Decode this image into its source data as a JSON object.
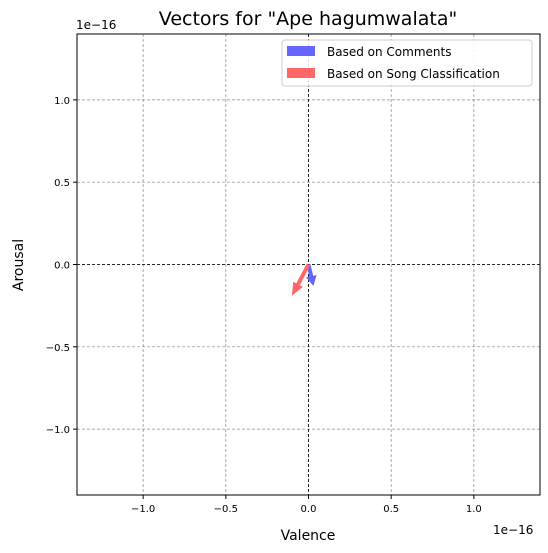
{
  "chart_data": {
    "type": "quiver",
    "title": "Vectors for \"Ape hagumwalata\"",
    "xlabel": "Valence",
    "ylabel": "Arousal",
    "x_offset_label": "1e−16",
    "y_offset_label": "1e−16",
    "scale": 1e-16,
    "xlim": [
      -1.4,
      1.4
    ],
    "ylim": [
      -1.4,
      1.4
    ],
    "xticks": [
      -1.0,
      -0.5,
      0.0,
      0.5,
      1.0
    ],
    "xtick_labels": [
      "−1.0",
      "−0.5",
      "0.0",
      "0.5",
      "1.0"
    ],
    "yticks": [
      -1.0,
      -0.5,
      0.0,
      0.5,
      1.0
    ],
    "ytick_labels": [
      "−1.0",
      "−0.5",
      "0.0",
      "0.5",
      "1.0"
    ],
    "grid": true,
    "legend_position": "top-right",
    "series": [
      {
        "name": "Based on Comments",
        "color": "#6666ff",
        "origin": [
          0,
          0
        ],
        "vector": [
          0.03,
          -0.13
        ]
      },
      {
        "name": "Based on Song Classification",
        "color": "#ff6666",
        "origin": [
          0,
          0
        ],
        "vector": [
          -0.1,
          -0.19
        ]
      }
    ]
  }
}
